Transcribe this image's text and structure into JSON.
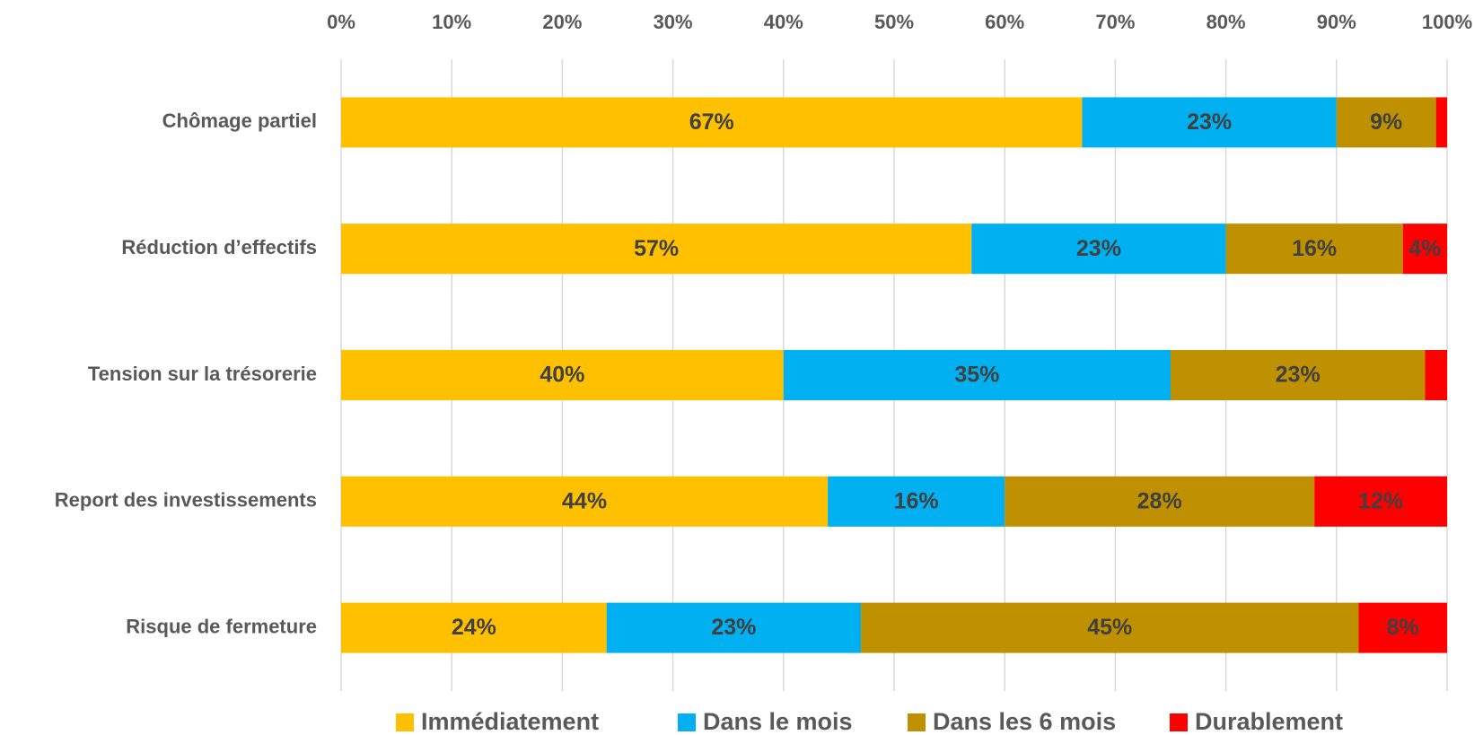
{
  "chart_data": {
    "type": "stacked_barh",
    "categories": [
      "Chômage partiel",
      "Réduction d’effectifs",
      "Tension sur la trésorerie",
      "Report des investissements",
      "Risque de fermeture"
    ],
    "series": [
      {
        "name": "Immédiatement",
        "color": "#FFC000",
        "values": [
          67,
          57,
          40,
          44,
          24
        ],
        "value_labels": [
          "67%",
          "57%",
          "40%",
          "44%",
          "24%"
        ]
      },
      {
        "name": "Dans le mois",
        "color": "#00B0F0",
        "values": [
          23,
          23,
          35,
          16,
          23
        ],
        "value_labels": [
          "23%",
          "23%",
          "35%",
          "16%",
          "23%"
        ]
      },
      {
        "name": "Dans les 6 mois",
        "color": "#BF9000",
        "values": [
          9,
          16,
          23,
          28,
          45
        ],
        "value_labels": [
          "9%",
          "16%",
          "23%",
          "28%",
          "45%"
        ]
      },
      {
        "name": "Durablement",
        "color": "#FF0000",
        "values": [
          1,
          4,
          2,
          12,
          8
        ],
        "value_labels": [
          null,
          "4%",
          null,
          "12%",
          "8%"
        ]
      }
    ],
    "xlim": [
      0,
      100
    ],
    "xticks": [
      {
        "value": 0,
        "label": "0%"
      },
      {
        "value": 10,
        "label": "10%"
      },
      {
        "value": 20,
        "label": "20%"
      },
      {
        "value": 30,
        "label": "30%"
      },
      {
        "value": 40,
        "label": "40%"
      },
      {
        "value": 50,
        "label": "50%"
      },
      {
        "value": 60,
        "label": "60%"
      },
      {
        "value": 70,
        "label": "70%"
      },
      {
        "value": 80,
        "label": "80%"
      },
      {
        "value": 90,
        "label": "90%"
      },
      {
        "value": 100,
        "label": "100%"
      }
    ],
    "grid": true,
    "legend": "bottom"
  }
}
